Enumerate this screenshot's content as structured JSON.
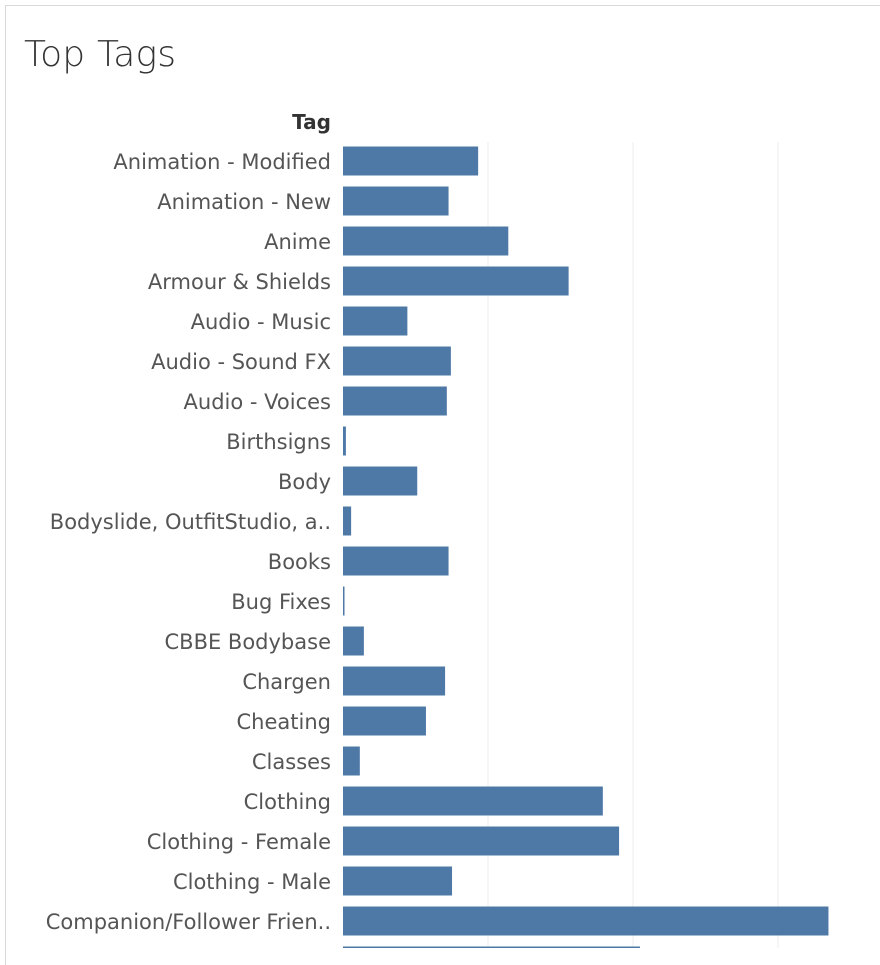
{
  "sheet": {
    "title": "Top Tags"
  },
  "chart_data": {
    "type": "bar",
    "orientation": "horizontal",
    "title": "Top Tags",
    "category_header": "Tag",
    "xlabel": "",
    "ylabel": "",
    "grid": true,
    "xlim": [
      0,
      100
    ],
    "gridlines": [
      25,
      50,
      75
    ],
    "bar_color": "#4e79a7",
    "categories": [
      "Animation - Modified",
      "Animation - New",
      "Anime",
      "Armour & Shields",
      "Audio - Music",
      "Audio - Sound FX",
      "Audio - Voices",
      "Birthsigns",
      "Body",
      "Bodyslide, OutfitStudio, a..",
      "Books",
      "Bug Fixes",
      "CBBE Bodybase",
      "Chargen",
      "Cheating",
      "Classes",
      "Clothing",
      "Clothing - Female",
      "Clothing - Male",
      "Companion/Follower Frien.."
    ],
    "values": [
      23.3,
      18.2,
      28.5,
      38.9,
      11.1,
      18.6,
      17.9,
      0.5,
      12.8,
      1.4,
      18.2,
      0.2,
      3.6,
      17.6,
      14.3,
      2.9,
      44.8,
      47.6,
      18.8,
      83.7
    ],
    "partial_next_value": 51.2
  }
}
